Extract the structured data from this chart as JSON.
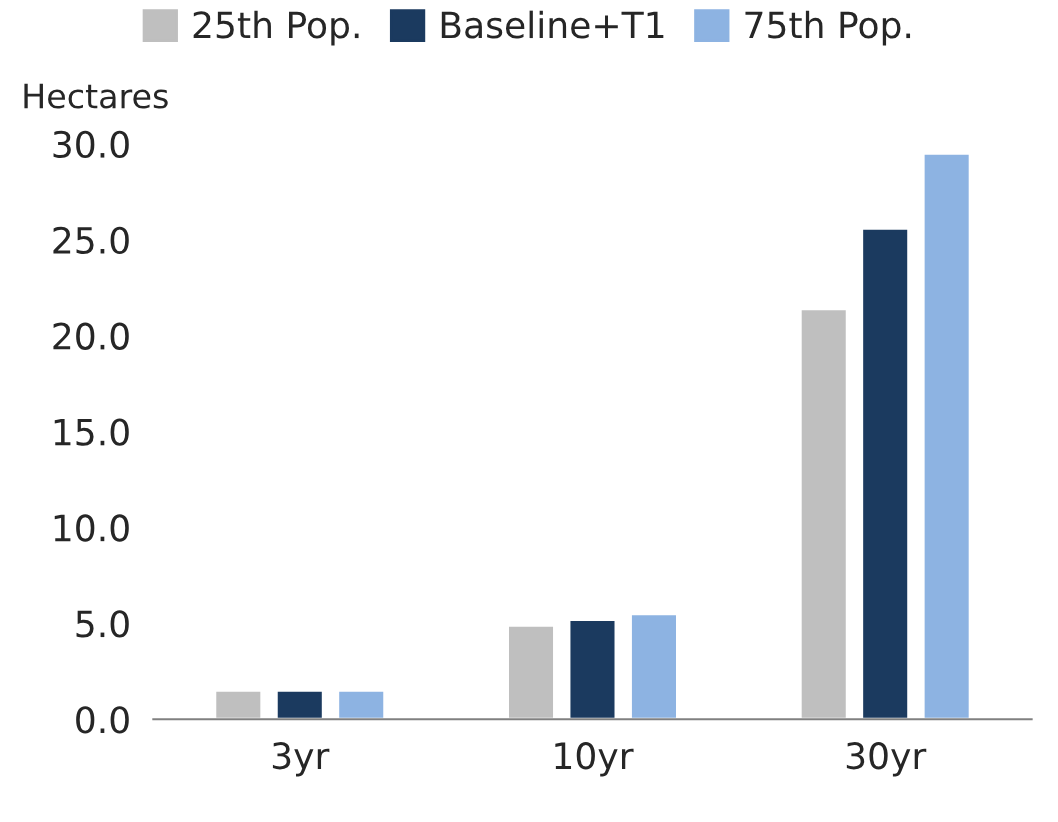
{
  "chart_data": {
    "type": "bar",
    "ylabel": "Hectares",
    "categories": [
      "3yr",
      "10yr",
      "30yr"
    ],
    "series": [
      {
        "name": "25th Pop.",
        "color": "#bfbfbf",
        "values": [
          1.5,
          4.9,
          21.4
        ]
      },
      {
        "name": "Baseline+T1",
        "color": "#1b3a5f",
        "values": [
          1.5,
          5.2,
          25.6
        ]
      },
      {
        "name": "75th Pop.",
        "color": "#8db3e2",
        "values": [
          1.5,
          5.5,
          29.5
        ]
      }
    ],
    "ylim": [
      0,
      30
    ],
    "yticks": [
      {
        "value": 0,
        "label": "0.0"
      },
      {
        "value": 5,
        "label": "5.0"
      },
      {
        "value": 10,
        "label": "10.0"
      },
      {
        "value": 15,
        "label": "15.0"
      },
      {
        "value": 20,
        "label": "20.0"
      },
      {
        "value": 25,
        "label": "25.0"
      },
      {
        "value": 30,
        "label": "30.0"
      }
    ],
    "grid": false,
    "legend": "top"
  }
}
